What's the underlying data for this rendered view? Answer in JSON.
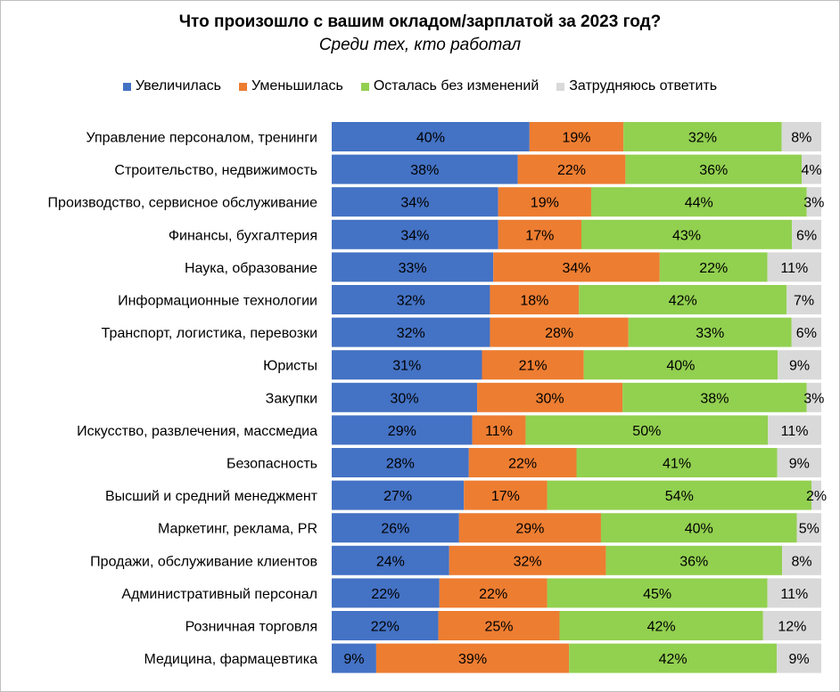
{
  "chart_data": {
    "type": "bar",
    "orientation": "horizontal",
    "stacked": true,
    "normalized": "100%",
    "title": "Что произошло с вашим окладом/зарплатой за 2023 год?",
    "subtitle": "Среди тех, кто работал",
    "legend_position": "top",
    "grid": false,
    "categories": [
      "Управление персоналом, тренинги",
      "Строительство, недвижимость",
      "Производство, сервисное обслуживание",
      "Финансы, бухгалтерия",
      "Наука, образование",
      "Информационные технологии",
      "Транспорт, логистика, перевозки",
      "Юристы",
      "Закупки",
      "Искусство, развлечения, массмедиа",
      "Безопасность",
      "Высший и средний менеджмент",
      "Маркетинг,  реклама, PR",
      "Продажи, обслуживание клиентов",
      "Административный персонал",
      "Розничная торговля",
      "Медицина, фармацевтика"
    ],
    "series": [
      {
        "name": "Увеличилась",
        "color": "#4472c4",
        "values": [
          40,
          38,
          34,
          34,
          33,
          32,
          32,
          31,
          30,
          29,
          28,
          27,
          26,
          24,
          22,
          22,
          9
        ]
      },
      {
        "name": "Уменьшилась",
        "color": "#ed7d31",
        "values": [
          19,
          22,
          19,
          17,
          34,
          18,
          28,
          21,
          30,
          11,
          22,
          17,
          29,
          32,
          22,
          25,
          39
        ]
      },
      {
        "name": "Осталась без изменений",
        "color": "#92d050",
        "values": [
          32,
          36,
          44,
          43,
          22,
          42,
          33,
          40,
          38,
          50,
          41,
          54,
          40,
          36,
          45,
          42,
          42
        ]
      },
      {
        "name": "Затрудняюсь ответить",
        "color": "#d9d9d9",
        "values": [
          8,
          4,
          3,
          6,
          11,
          7,
          6,
          9,
          3,
          11,
          9,
          2,
          5,
          8,
          11,
          12,
          9
        ]
      }
    ]
  }
}
